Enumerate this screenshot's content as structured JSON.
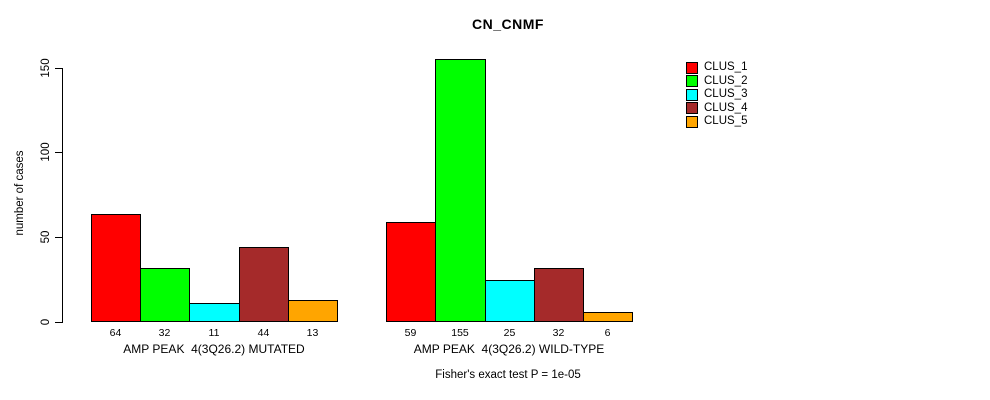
{
  "title": "CN_CNMF",
  "chart_data": {
    "type": "bar",
    "title": "CN_CNMF",
    "ylabel": "number of cases",
    "xlabel": "",
    "ylim": [
      0,
      150
    ],
    "yticks": [
      0,
      50,
      100,
      150
    ],
    "grid": false,
    "background": "#FFFFFF",
    "bar_outline": "#000000",
    "legend_position": "right-top",
    "categories": [
      "AMP PEAK  4(3Q26.2) MUTATED",
      "AMP PEAK  4(3Q26.2) WILD-TYPE"
    ],
    "series": [
      {
        "name": "CLUS_1",
        "color": "#FF0000",
        "values": [
          64,
          59
        ]
      },
      {
        "name": "CLUS_2",
        "color": "#00FF00",
        "values": [
          32,
          155
        ]
      },
      {
        "name": "CLUS_3",
        "color": "#00FFFF",
        "values": [
          11,
          25
        ]
      },
      {
        "name": "CLUS_4",
        "color": "#A52A2A",
        "values": [
          44,
          32
        ]
      },
      {
        "name": "CLUS_5",
        "color": "#FFA500",
        "values": [
          13,
          6
        ]
      }
    ],
    "bar_value_labels": [
      [
        64,
        32,
        11,
        44,
        13
      ],
      [
        59,
        155,
        25,
        32,
        6
      ]
    ],
    "footnote": "Fisher's exact test P = 1e-05"
  },
  "legend": {
    "items": [
      {
        "label": "CLUS_1",
        "color": "#FF0000"
      },
      {
        "label": "CLUS_2",
        "color": "#00FF00"
      },
      {
        "label": "CLUS_3",
        "color": "#00FFFF"
      },
      {
        "label": "CLUS_4",
        "color": "#A52A2A"
      },
      {
        "label": "CLUS_5",
        "color": "#FFA500"
      }
    ]
  }
}
